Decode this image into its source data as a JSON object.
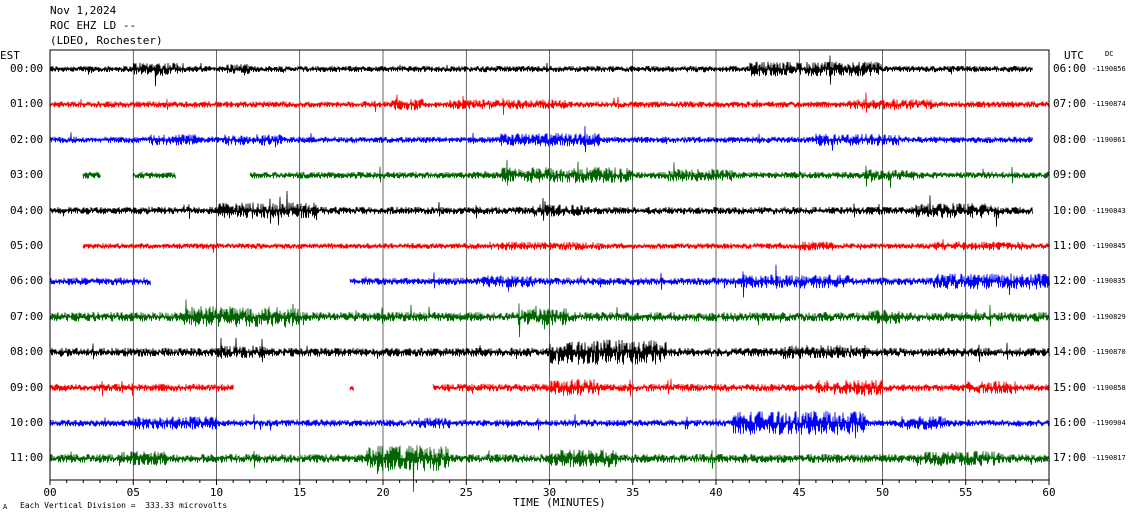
{
  "header": {
    "date": "Nov 1,2024",
    "station": "ROC EHZ LD --",
    "network": "(LDEO, Rochester)"
  },
  "left_axis_label": "EST",
  "right_axis_label": "UTC",
  "right_axis_note": "DC",
  "footer": {
    "xlabel": "TIME (MINUTES)",
    "scale_note": "Each Vertical Division =  333.33 microvolts",
    "corner_mark": "A"
  },
  "colors": {
    "black": "#000000",
    "red": "#ff0000",
    "blue": "#0000ff",
    "green": "#006400",
    "gridline": "#000000"
  },
  "chart_data": {
    "type": "line",
    "title": "ROC EHZ LD --",
    "xlabel": "TIME (MINUTES)",
    "xlim": [
      0,
      60
    ],
    "x_ticks": [
      "00",
      "05",
      "10",
      "15",
      "20",
      "25",
      "30",
      "35",
      "40",
      "45",
      "50",
      "55",
      "60"
    ],
    "series": [
      {
        "left": "00:00",
        "right": "06:00",
        "count": "-1190856",
        "color": "black",
        "amp": 1.0,
        "start": 0,
        "end": 59,
        "gaps": [],
        "bursts": [
          [
            5,
            8,
            2.2
          ],
          [
            42,
            50,
            2.3
          ],
          [
            10.5,
            12,
            1.6
          ]
        ]
      },
      {
        "left": "01:00",
        "right": "07:00",
        "count": "-1190874",
        "color": "red",
        "amp": 1.0,
        "start": 0,
        "end": 60,
        "gaps": [],
        "bursts": [
          [
            20.5,
            22.5,
            1.9
          ],
          [
            24,
            31,
            1.6
          ],
          [
            48,
            53,
            1.6
          ]
        ]
      },
      {
        "left": "02:00",
        "right": "08:00",
        "count": "-1190861",
        "color": "blue",
        "amp": 1.0,
        "start": 0,
        "end": 59,
        "gaps": [],
        "bursts": [
          [
            6,
            9,
            1.8
          ],
          [
            10.5,
            14,
            1.9
          ],
          [
            27,
            33,
            2.1
          ],
          [
            46,
            51,
            1.9
          ]
        ]
      },
      {
        "left": "03:00",
        "right": "09:00",
        "count": "",
        "color": "green",
        "amp": 1.1,
        "start": 2,
        "end": 60,
        "gaps": [
          [
            3,
            5
          ],
          [
            7.5,
            12
          ]
        ],
        "bursts": [
          [
            27,
            35,
            2.3
          ],
          [
            37,
            41,
            1.8
          ],
          [
            49,
            52,
            1.6
          ]
        ]
      },
      {
        "left": "04:00",
        "right": "10:00",
        "count": "-1190843",
        "color": "black",
        "amp": 1.2,
        "start": 0,
        "end": 59,
        "gaps": [],
        "bursts": [
          [
            10,
            16,
            2.1
          ],
          [
            52,
            57,
            2.0
          ],
          [
            29,
            32,
            1.6
          ]
        ]
      },
      {
        "left": "05:00",
        "right": "11:00",
        "count": "-1190845",
        "color": "red",
        "amp": 0.9,
        "start": 2,
        "end": 60,
        "gaps": [],
        "bursts": [
          [
            26,
            33,
            1.5
          ],
          [
            45,
            47,
            1.6
          ],
          [
            53,
            59,
            1.6
          ]
        ]
      },
      {
        "left": "06:00",
        "right": "12:00",
        "count": "-1190835",
        "color": "blue",
        "amp": 1.2,
        "start": 0,
        "end": 60,
        "gaps": [
          [
            6,
            18
          ]
        ],
        "bursts": [
          [
            26,
            29,
            1.6
          ],
          [
            41,
            48,
            1.8
          ],
          [
            53,
            60,
            2.1
          ]
        ]
      },
      {
        "left": "07:00",
        "right": "13:00",
        "count": "-1190829",
        "color": "green",
        "amp": 1.5,
        "start": 0,
        "end": 60,
        "gaps": [],
        "bursts": [
          [
            8,
            15,
            2.2
          ],
          [
            28,
            31,
            1.8
          ],
          [
            49,
            51,
            1.5
          ]
        ]
      },
      {
        "left": "08:00",
        "right": "14:00",
        "count": "-1190870",
        "color": "black",
        "amp": 1.4,
        "start": 0,
        "end": 60,
        "gaps": [],
        "bursts": [
          [
            30,
            37,
            2.8
          ],
          [
            10,
            13,
            1.5
          ],
          [
            44,
            49,
            1.6
          ]
        ]
      },
      {
        "left": "09:00",
        "right": "15:00",
        "count": "-1190858",
        "color": "red",
        "amp": 1.2,
        "start": 0,
        "end": 60,
        "gaps": [
          [
            11,
            18
          ],
          [
            18.2,
            23
          ]
        ],
        "bursts": [
          [
            30,
            33,
            2.3
          ],
          [
            46,
            50,
            2.1
          ],
          [
            55,
            58,
            1.7
          ]
        ]
      },
      {
        "left": "10:00",
        "right": "16:00",
        "count": "-1190904",
        "color": "blue",
        "amp": 1.1,
        "start": 0,
        "end": 60,
        "gaps": [],
        "bursts": [
          [
            41,
            49,
            3.5
          ],
          [
            5,
            10,
            1.9
          ],
          [
            22,
            24,
            1.6
          ],
          [
            51,
            54,
            2.0
          ]
        ]
      },
      {
        "left": "11:00",
        "right": "17:00",
        "count": "-1190817",
        "color": "green",
        "amp": 1.4,
        "start": 0,
        "end": 60,
        "gaps": [],
        "bursts": [
          [
            19,
            24,
            3.0
          ],
          [
            30,
            34,
            2.0
          ],
          [
            4,
            7,
            1.7
          ],
          [
            52,
            57,
            1.7
          ]
        ]
      }
    ]
  }
}
